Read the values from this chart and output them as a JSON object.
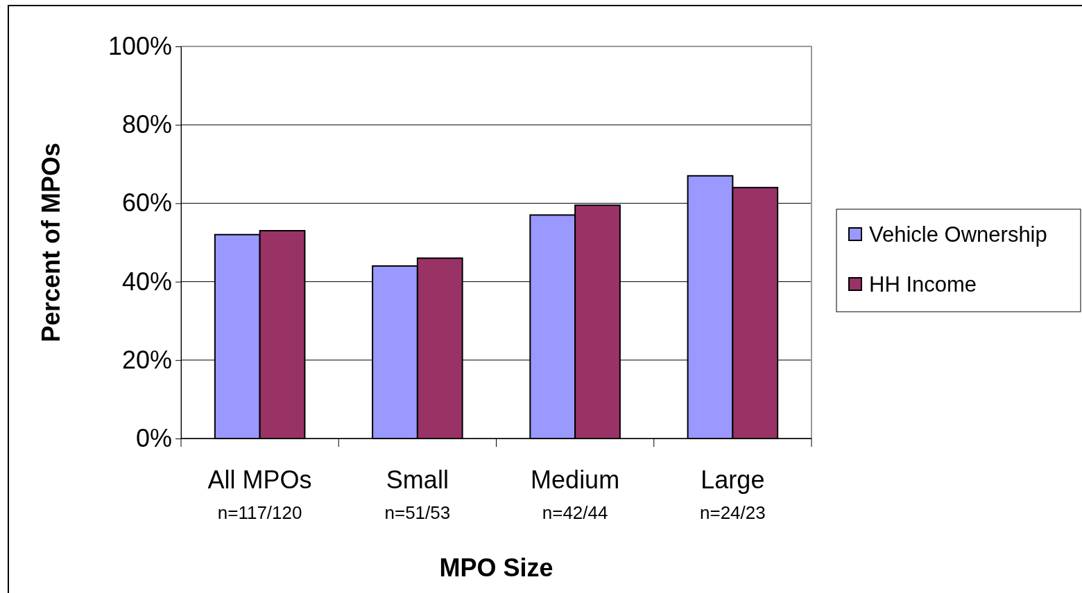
{
  "chart_data": {
    "type": "bar",
    "xlabel": "MPO Size",
    "ylabel": "Percent of MPOs",
    "categories": [
      "All MPOs\nn=117/120",
      "Small\nn=51/53",
      "Medium\nn=42/44",
      "Large\nn=24/23"
    ],
    "series": [
      {
        "name": "Vehicle Ownership",
        "color": "#9999ff",
        "values": [
          52,
          44,
          57,
          67
        ]
      },
      {
        "name": "HH Income",
        "color": "#993366",
        "values": [
          53,
          46,
          59.5,
          64
        ]
      }
    ],
    "ylim": [
      0,
      100
    ],
    "yticks": [
      {
        "value": 0,
        "label": "0%"
      },
      {
        "value": 20,
        "label": "20%"
      },
      {
        "value": 40,
        "label": "40%"
      },
      {
        "value": 60,
        "label": "60%"
      },
      {
        "value": 80,
        "label": "80%"
      },
      {
        "value": 100,
        "label": "100%"
      }
    ],
    "grid": "y",
    "legend": "right"
  }
}
